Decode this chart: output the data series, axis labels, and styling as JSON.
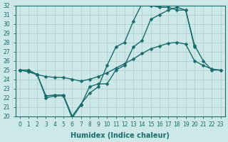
{
  "xlabel": "Humidex (Indice chaleur)",
  "bg_color": "#cde8e8",
  "grid_color": "#b0d0d0",
  "line_color": "#1a6b6b",
  "markersize": 2.5,
  "linewidth": 1.0,
  "x": [
    0,
    1,
    2,
    3,
    4,
    5,
    6,
    7,
    8,
    9,
    10,
    11,
    12,
    13,
    14,
    15,
    16,
    17,
    18,
    19,
    20,
    21,
    22,
    23
  ],
  "line1": [
    25.0,
    25.0,
    24.5,
    22.2,
    22.3,
    22.3,
    20.0,
    21.3,
    22.5,
    23.2,
    25.5,
    27.5,
    28.0,
    30.3,
    32.2,
    32.0,
    31.8,
    31.8,
    31.5,
    31.5,
    27.5,
    null,
    null,
    null
  ],
  "line2": [
    25.0,
    24.8,
    24.5,
    24.3,
    24.2,
    24.2,
    24.0,
    23.8,
    24.0,
    24.3,
    24.7,
    25.2,
    25.7,
    26.2,
    26.8,
    27.3,
    27.6,
    27.9,
    28.0,
    27.8,
    26.0,
    25.5,
    25.1,
    25.0
  ],
  "line3": [
    25.0,
    25.0,
    24.5,
    22.0,
    22.2,
    22.2,
    19.8,
    21.2,
    23.2,
    23.5,
    23.5,
    25.0,
    25.5,
    27.5,
    28.2,
    30.5,
    31.0,
    31.5,
    31.8,
    31.5,
    27.7,
    26.0,
    25.0,
    25.0
  ],
  "ylim": [
    20,
    32
  ],
  "xlim": [
    -0.5,
    23.5
  ],
  "yticks": [
    20,
    21,
    22,
    23,
    24,
    25,
    26,
    27,
    28,
    29,
    30,
    31,
    32
  ],
  "xticks": [
    0,
    1,
    2,
    3,
    4,
    5,
    6,
    7,
    8,
    9,
    10,
    11,
    12,
    13,
    14,
    15,
    16,
    17,
    18,
    19,
    20,
    21,
    22,
    23
  ],
  "tick_fontsize": 5.5,
  "xlabel_fontsize": 7,
  "tick_color": "#1a6b6b"
}
